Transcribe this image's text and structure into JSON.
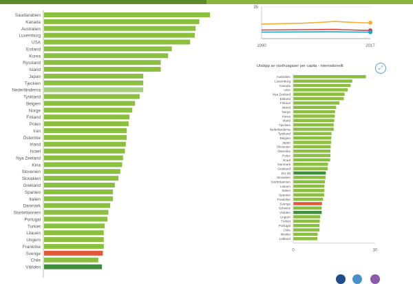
{
  "colors": {
    "bar": "#8bbf3f",
    "highlight_light": "#a6cf7a",
    "sweden": "#e05a3a",
    "world": "#3d8f3a",
    "eu": "#3d8f3a",
    "topbar": "#8ab23f",
    "social": [
      "#1f4f8a",
      "#4a90c8",
      "#8a5aa8"
    ]
  },
  "expand_icon": "expand-icon",
  "chart_data": [
    {
      "type": "bar",
      "orientation": "horizontal",
      "categories": [
        "Saudiarabien",
        "Kanada",
        "Australien",
        "Luxemburg",
        "USA",
        "Estland",
        "Korea",
        "Ryssland",
        "Island",
        "Japan",
        "Tjeckien",
        "Nederländerna",
        "Tyskland",
        "Belgien",
        "Norge",
        "Finland",
        "Polen",
        "Iran",
        "Österrike",
        "Irland",
        "Israel",
        "Nya Zeeland",
        "Kina",
        "Slovenien",
        "Slovakien",
        "Grekland",
        "Spanien",
        "Italien",
        "Danmark",
        "Storbritannien",
        "Portugal",
        "Turkiet",
        "Litauen",
        "Ungern",
        "Frankrike",
        "Sverige",
        "Chile",
        "Världen"
      ],
      "values": [
        19.5,
        16.9,
        16.5,
        16.4,
        15.9,
        13.9,
        13.5,
        12.7,
        12.7,
        10.8,
        10.8,
        10.8,
        10.4,
        9.9,
        9.6,
        9.3,
        9.2,
        9.0,
        9.0,
        8.9,
        8.8,
        8.6,
        8.5,
        8.3,
        8.1,
        7.7,
        7.5,
        7.5,
        7.2,
        7.0,
        6.9,
        6.6,
        6.5,
        6.5,
        6.5,
        6.4,
        5.9,
        6.3
      ],
      "highlight": {
        "Nederländerna": "highlight_light",
        "Sverige": "sweden",
        "Världen": "world"
      }
    },
    {
      "type": "line",
      "x_ticks": [
        "1990",
        "2017"
      ],
      "y_ticks": [
        "35"
      ],
      "xlim": [
        1990,
        2017
      ],
      "ylim": [
        0,
        35
      ],
      "series": [
        {
          "color": "#f0b030",
          "x": [
            1990,
            1995,
            2000,
            2005,
            2008,
            2010,
            2012,
            2015,
            2017
          ],
          "y": [
            16,
            16.5,
            17,
            18,
            19,
            18.5,
            18,
            17.5,
            17.5
          ]
        },
        {
          "color": "#d04040",
          "x": [
            1990,
            1995,
            2000,
            2005,
            2008,
            2010,
            2012,
            2015,
            2017
          ],
          "y": [
            9.5,
            9.6,
            9.8,
            10,
            10.2,
            9.8,
            9.6,
            9.2,
            9.0
          ]
        },
        {
          "color": "#2a9fc8",
          "x": [
            1990,
            1995,
            2000,
            2005,
            2008,
            2010,
            2012,
            2015,
            2017
          ],
          "y": [
            7.2,
            7.3,
            7.4,
            7.5,
            7.6,
            7.4,
            7.3,
            7.2,
            7.1
          ]
        }
      ]
    },
    {
      "type": "bar",
      "orientation": "horizontal",
      "title": "Utsläpp av växthusgaser per capita - internationellt",
      "xlim": [
        0,
        30
      ],
      "x_ticks": [
        "0",
        "30"
      ],
      "categories": [
        "Australien",
        "Luxemburg",
        "Kanada",
        "USA",
        "Nya Zeeland",
        "Estland",
        "Finland",
        "Island",
        "Norge",
        "Korea",
        "Irland",
        "Tjeckien",
        "Nederländerna",
        "Tyskland",
        "Belgien",
        "Japan",
        "Slovenien",
        "Österrike",
        "Polen",
        "Israel",
        "Danmark",
        "Grekland",
        "EU-28",
        "Slovakien",
        "Storbritannien",
        "Litauen",
        "Italien",
        "Spanien",
        "Frankrike",
        "Sverige",
        "Schweiz",
        "Världen",
        "Ungern",
        "Turkiet",
        "Portugal",
        "Chile",
        "Mexiko",
        "Lettland"
      ],
      "values": [
        26.5,
        21.5,
        20.9,
        19.8,
        18.7,
        18.4,
        16.8,
        15.6,
        15.2,
        15.1,
        14.9,
        14.7,
        14.7,
        13.9,
        13.8,
        13.8,
        13.6,
        13.5,
        13.5,
        13.4,
        12.6,
        12.5,
        11.8,
        11.7,
        11.5,
        11.3,
        11.3,
        11.2,
        10.8,
        10.4,
        10.3,
        10.3,
        9.8,
        9.6,
        9.5,
        9.5,
        8.8,
        8.7
      ],
      "highlight": {
        "EU-28": "eu",
        "Sverige": "sweden",
        "Världen": "world"
      }
    }
  ]
}
